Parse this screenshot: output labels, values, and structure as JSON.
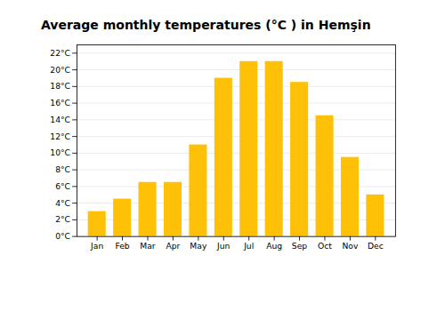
{
  "chart_data": {
    "type": "bar",
    "title": "Average monthly temperatures (°C ) in Hemşin",
    "categories": [
      "Jan",
      "Feb",
      "Mar",
      "Apr",
      "May",
      "Jun",
      "Jul",
      "Aug",
      "Sep",
      "Oct",
      "Nov",
      "Dec"
    ],
    "values": [
      3.0,
      4.5,
      6.5,
      6.5,
      11.0,
      19.0,
      21.0,
      21.0,
      18.5,
      14.5,
      9.5,
      5.0
    ],
    "color": "#FFC107",
    "ylim": [
      0,
      23
    ],
    "yticks": [
      {
        "value": 0,
        "label": "0°C"
      },
      {
        "value": 2,
        "label": "2°C"
      },
      {
        "value": 4,
        "label": "4°C"
      },
      {
        "value": 6,
        "label": "6°C"
      },
      {
        "value": 8,
        "label": "8°C"
      },
      {
        "value": 10,
        "label": "10°C"
      },
      {
        "value": 12,
        "label": "12°C"
      },
      {
        "value": 14,
        "label": "14°C"
      },
      {
        "value": 16,
        "label": "16°C"
      },
      {
        "value": 18,
        "label": "18°C"
      },
      {
        "value": 20,
        "label": "20°C"
      },
      {
        "value": 22,
        "label": "22°C"
      }
    ],
    "grid": true
  }
}
